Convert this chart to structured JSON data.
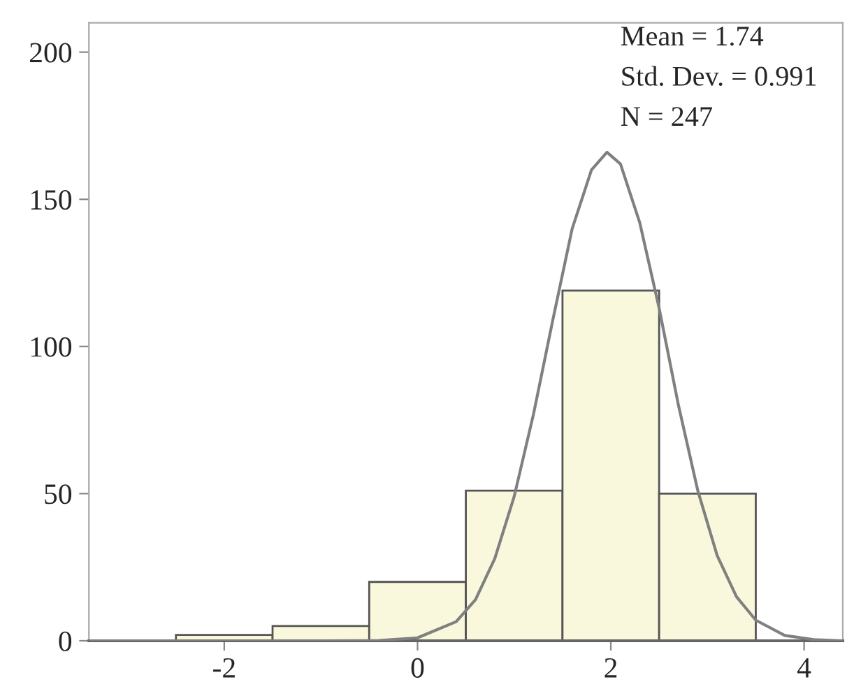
{
  "chart_data": {
    "type": "histogram",
    "bins": [
      -2.5,
      -1.5,
      -0.5,
      0.5,
      1.5,
      2.5,
      3.5
    ],
    "values": [
      2,
      5,
      20,
      51,
      119,
      50
    ],
    "color": "#faf8dc",
    "series": [
      {
        "type": "line",
        "color": "#808080",
        "x": [
          -3.4,
          -1,
          -0.4,
          0,
          0.4,
          0.6,
          0.8,
          1.0,
          1.2,
          1.4,
          1.6,
          1.8,
          1.96,
          2.1,
          2.3,
          2.5,
          2.7,
          2.9,
          3.1,
          3.3,
          3.5,
          3.8,
          4.1,
          4.4
        ],
        "values": [
          0,
          0,
          0.1,
          1,
          6.5,
          14,
          28,
          49,
          77,
          109,
          140,
          160,
          166,
          162,
          142,
          113,
          80,
          51,
          29,
          15,
          7,
          1.8,
          0.4,
          0
        ]
      }
    ],
    "annotations": [
      "Mean = 1.74",
      "Std. Dev. = 0.991",
      "N = 247"
    ],
    "xlim": [
      -3.4,
      4.4
    ],
    "ylim": [
      0,
      210
    ],
    "xticks": [
      -2,
      0,
      2,
      4
    ],
    "yticks": [
      0,
      50,
      100,
      150,
      200
    ],
    "grid": false
  }
}
